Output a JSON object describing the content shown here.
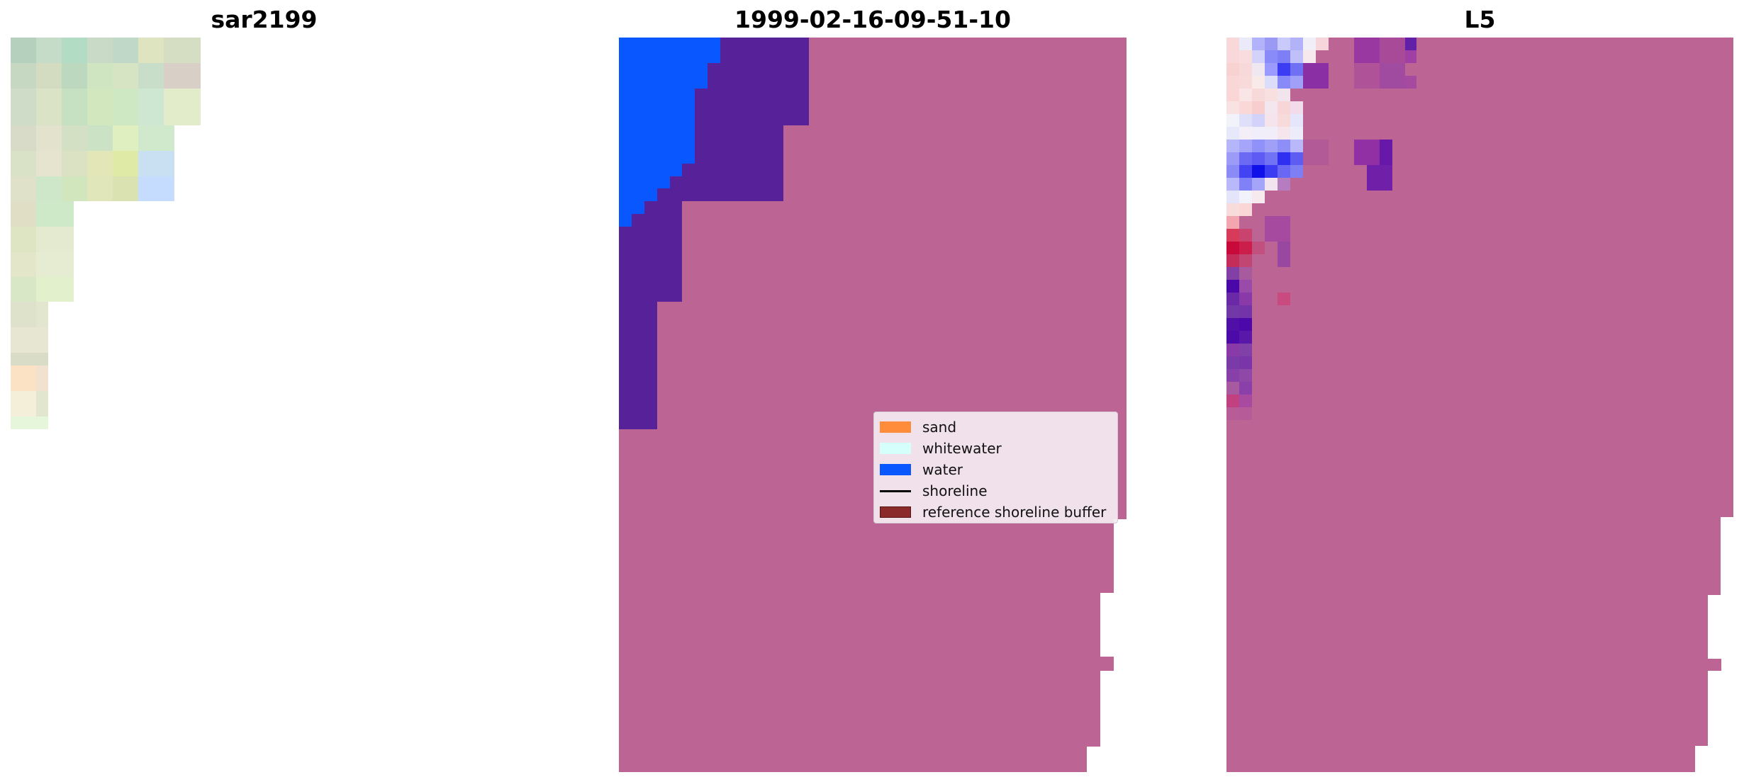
{
  "panels": {
    "sar": {
      "title": "sar2199"
    },
    "classified": {
      "title": "1999-02-16-09-51-10"
    },
    "layer": {
      "title": "L5"
    }
  },
  "colors": {
    "sand": "#ff8c3a",
    "whitewater": "#d4fffb",
    "water": "#0857ff",
    "land_overlay": "#bc6595",
    "dark_water_overlay": "#57219a",
    "reference_buffer": "#8b2a2a"
  },
  "legend": {
    "items": [
      {
        "label": "sand",
        "kind": "patch",
        "color": "#ff8c3a"
      },
      {
        "label": "whitewater",
        "kind": "patch",
        "color": "#d4fffb"
      },
      {
        "label": "water",
        "kind": "patch",
        "color": "#0857ff"
      },
      {
        "label": "shoreline",
        "kind": "line",
        "color": "#000000"
      },
      {
        "label": "reference shoreline buffer",
        "kind": "patch",
        "color": "#8b2a2a"
      }
    ]
  }
}
